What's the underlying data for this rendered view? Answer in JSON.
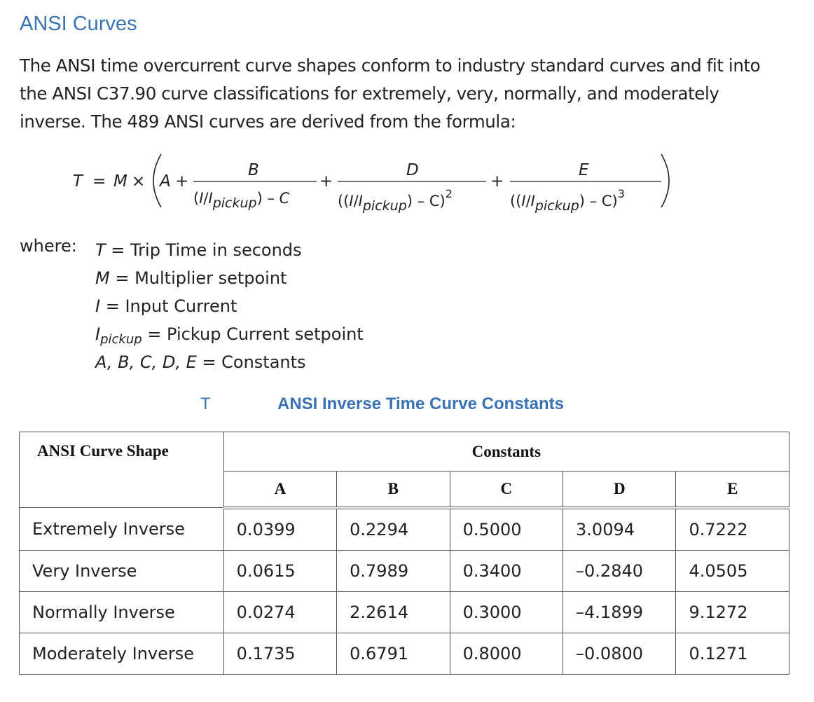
{
  "heading": "ANSI Curves",
  "intro": "The ANSI time overcurrent curve shapes conform to industry standard curves and fit into the ANSI C37.90 curve classifications for extremely, very, normally, and moderately inverse. The 489 ANSI curves are derived from the formula:",
  "formula": {
    "T": "T",
    "eq": "=",
    "M": "M",
    "times": "×",
    "A": "A",
    "plus": "+",
    "B": "B",
    "D": "D",
    "E": "E",
    "I": "I",
    "slash": "/",
    "pickup": "pickup",
    "minus": "–",
    "C": "C",
    "sq": "2",
    "cube": "3"
  },
  "where": {
    "label": "where:",
    "items": [
      {
        "sym": "T",
        "sub": "",
        "text": " = Trip Time in seconds"
      },
      {
        "sym": "M",
        "sub": "",
        "text": " = Multiplier setpoint"
      },
      {
        "sym": "I",
        "sub": "",
        "text": " = Input Current"
      },
      {
        "sym": "I",
        "sub": "pickup",
        "text": " = Pickup Current setpoint"
      },
      {
        "sym": "A, B, C, D, E",
        "sub": "",
        "text": " = Constants"
      }
    ]
  },
  "table_caption_t": "T",
  "table_caption": "ANSI Inverse Time Curve Constants",
  "table": {
    "shape_header": "ANSI Curve Shape",
    "constants_header": "Constants",
    "columns": [
      "A",
      "B",
      "C",
      "D",
      "E"
    ],
    "rows": [
      {
        "shape": "Extremely Inverse",
        "values": [
          "0.0399",
          "0.2294",
          "0.5000",
          "3.0094",
          "0.7222"
        ]
      },
      {
        "shape": "Very Inverse",
        "values": [
          "0.0615",
          "0.7989",
          "0.3400",
          "–0.2840",
          "4.0505"
        ]
      },
      {
        "shape": "Normally Inverse",
        "values": [
          "0.0274",
          "2.2614",
          "0.3000",
          "–4.1899",
          "9.1272"
        ]
      },
      {
        "shape": "Moderately Inverse",
        "values": [
          "0.1735",
          "0.6791",
          "0.8000",
          "–0.0800",
          "0.1271"
        ]
      }
    ]
  }
}
